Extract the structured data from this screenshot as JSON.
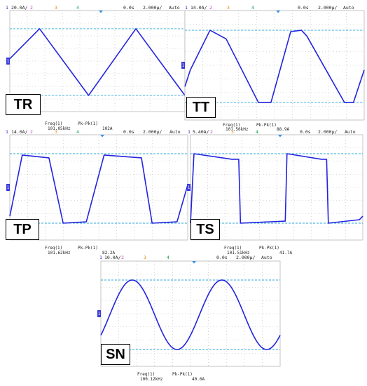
{
  "colors": {
    "trace": "#2323e0",
    "grid": "#b8b8b8",
    "cursor": "#2aa7d8",
    "channel_marker": "#3a3ad8"
  },
  "panels": [
    {
      "tag": "TR",
      "header": {
        "ch1": "1",
        "scale": "20.0A/",
        "ch2": "2",
        "ch3": "3",
        "ch4": "4",
        "pos": "0.0s",
        "timebase": "2.000µ/",
        "mode": "Auto"
      },
      "meas": {
        "freq_label": "Freq(1)",
        "freq_value": "101.05kHz",
        "pk_label": "Pk-Pk(1)",
        "pk_value": "102A"
      }
    },
    {
      "tag": "TT",
      "header": {
        "ch1": "1",
        "scale": "14.0A/",
        "ch2": "2",
        "ch3": "3",
        "ch4": "4",
        "pos": "0.0s",
        "timebase": "2.000µ/",
        "mode": "Auto"
      },
      "meas": {
        "freq_label": "Freq(1)",
        "freq_value": "101.56kHz",
        "pk_label": "Pk-Pk(1)",
        "pk_value": "88.9A"
      }
    },
    {
      "tag": "TP",
      "header": {
        "ch1": "1",
        "scale": "14.0A/",
        "ch2": "2",
        "ch3": "3",
        "ch4": "4",
        "pos": "0.0s",
        "timebase": "2.000µ/",
        "mode": "Auto"
      },
      "meas": {
        "freq_label": "Freq(1)",
        "freq_value": "101.62kHz",
        "pk_label": "Pk-Pk(1)",
        "pk_value": "82.2A"
      }
    },
    {
      "tag": "TS",
      "header": {
        "ch1": "1",
        "scale": "5.40A/",
        "ch2": "2",
        "ch3": "3",
        "ch4": "4",
        "pos": "0.0s",
        "timebase": "2.000µ/",
        "mode": "Auto"
      },
      "meas": {
        "freq_label": "Freq(1)",
        "freq_value": "101.51kHz",
        "pk_label": "Pk-Pk(1)",
        "pk_value": "41.7A"
      }
    },
    {
      "tag": "SN",
      "header": {
        "ch1": "1",
        "scale": "10.0A/",
        "ch2": "2",
        "ch3": "3",
        "ch4": "4",
        "pos": "0.0s",
        "timebase": "2.000µ/",
        "mode": "Auto"
      },
      "meas": {
        "freq_label": "Freq(1)",
        "freq_value": "100.12kHz",
        "pk_label": "Pk-Pk(1)",
        "pk_value": "40.6A"
      }
    }
  ],
  "chart_data": [
    {
      "type": "line",
      "waveform": "triangle",
      "freq_kHz": 101.05,
      "pk_pk_A": 102,
      "cycles_shown": 2
    },
    {
      "type": "line",
      "waveform": "trapezoid-trailing",
      "freq_kHz": 101.56,
      "pk_pk_A": 88.9,
      "cycles_shown": 2
    },
    {
      "type": "line",
      "waveform": "trapezoid",
      "freq_kHz": 101.62,
      "pk_pk_A": 82.2,
      "cycles_shown": 2
    },
    {
      "type": "line",
      "waveform": "square",
      "freq_kHz": 101.51,
      "pk_pk_A": 41.7,
      "cycles_shown": 2
    },
    {
      "type": "line",
      "waveform": "sine",
      "freq_kHz": 100.12,
      "pk_pk_A": 40.6,
      "cycles_shown": 2
    }
  ]
}
